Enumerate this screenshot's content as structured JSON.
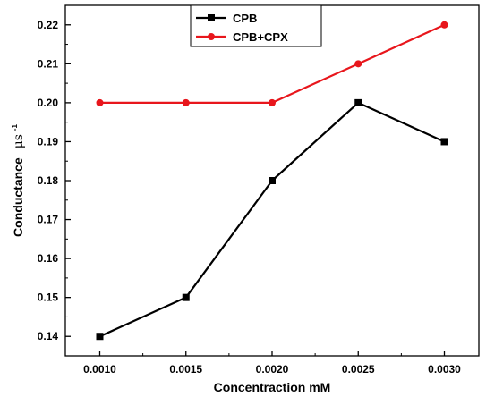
{
  "chart_data": {
    "type": "line",
    "x": [
      0.001,
      0.0015,
      0.002,
      0.0025,
      0.003
    ],
    "x_tick_labels": [
      "0.0010",
      "0.0015",
      "0.0020",
      "0.0025",
      "0.0030"
    ],
    "y_ticks": [
      0.14,
      0.15,
      0.16,
      0.17,
      0.18,
      0.19,
      0.2,
      0.21,
      0.22
    ],
    "y_tick_labels": [
      "0.14",
      "0.15",
      "0.16",
      "0.17",
      "0.18",
      "0.19",
      "0.20",
      "0.21",
      "0.22"
    ],
    "xlabel": "Concentraction mM",
    "ylabel": "Conductance",
    "ylabel_unit": "μs",
    "ylabel_unit_exp": "-1",
    "xlim": [
      0.0008,
      0.0032
    ],
    "ylim": [
      0.135,
      0.225
    ],
    "grid": false,
    "legend_position": "top-center",
    "series": [
      {
        "name": "CPB",
        "values": [
          0.14,
          0.15,
          0.18,
          0.2,
          0.19
        ],
        "color": "#000000",
        "marker": "square"
      },
      {
        "name": "CPB+CPX",
        "values": [
          0.2,
          0.2,
          0.2,
          0.21,
          0.22
        ],
        "color": "#e8161c",
        "marker": "circle"
      }
    ]
  }
}
